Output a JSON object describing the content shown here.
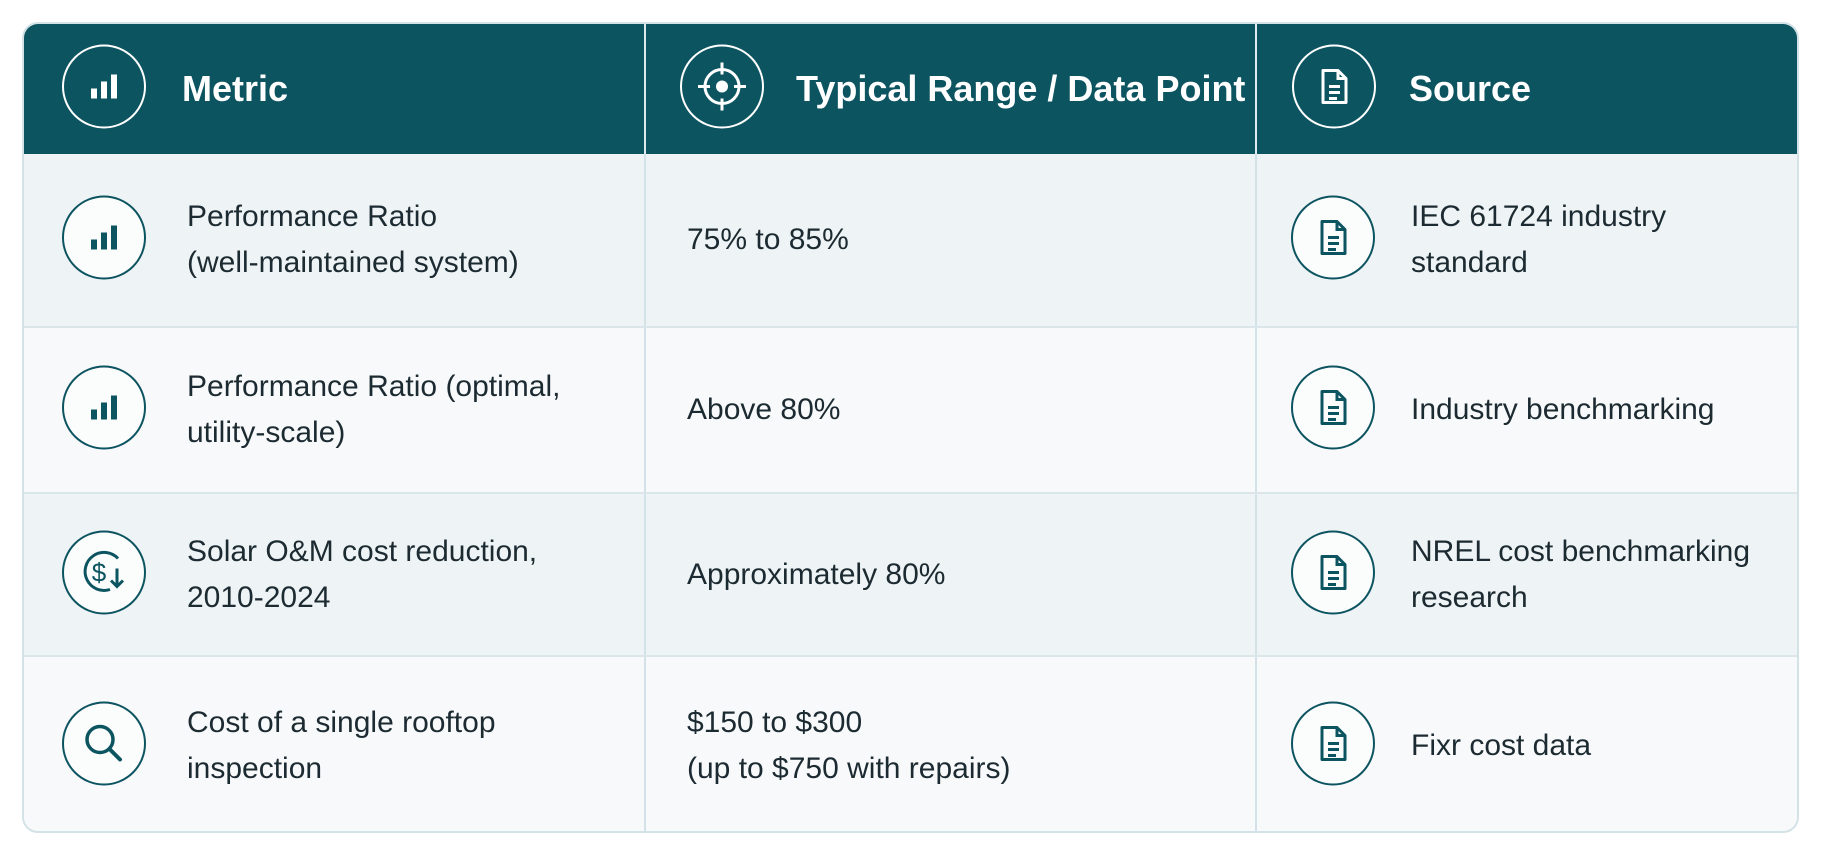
{
  "table": {
    "headers": [
      "Metric",
      "Typical Range / Data Point",
      "Source"
    ],
    "rows": [
      {
        "metric": [
          "Performance Ratio",
          "(well-maintained system)"
        ],
        "range": [
          "75% to 85%"
        ],
        "source": [
          "IEC 61724 industry",
          "standard"
        ]
      },
      {
        "metric": [
          "Performance Ratio (optimal,",
          "utility-scale)"
        ],
        "range": [
          "Above 80%"
        ],
        "source": [
          "Industry benchmarking"
        ]
      },
      {
        "metric": [
          "Solar O&M cost reduction,",
          "2010-2024"
        ],
        "range": [
          "Approximately 80%"
        ],
        "source": [
          "NREL cost benchmarking",
          "research"
        ]
      },
      {
        "metric": [
          "Cost of a single rooftop inspection"
        ],
        "range": [
          "$150 to $300",
          "(up to $750 with repairs)"
        ],
        "source": [
          "Fixr cost data"
        ]
      }
    ]
  }
}
